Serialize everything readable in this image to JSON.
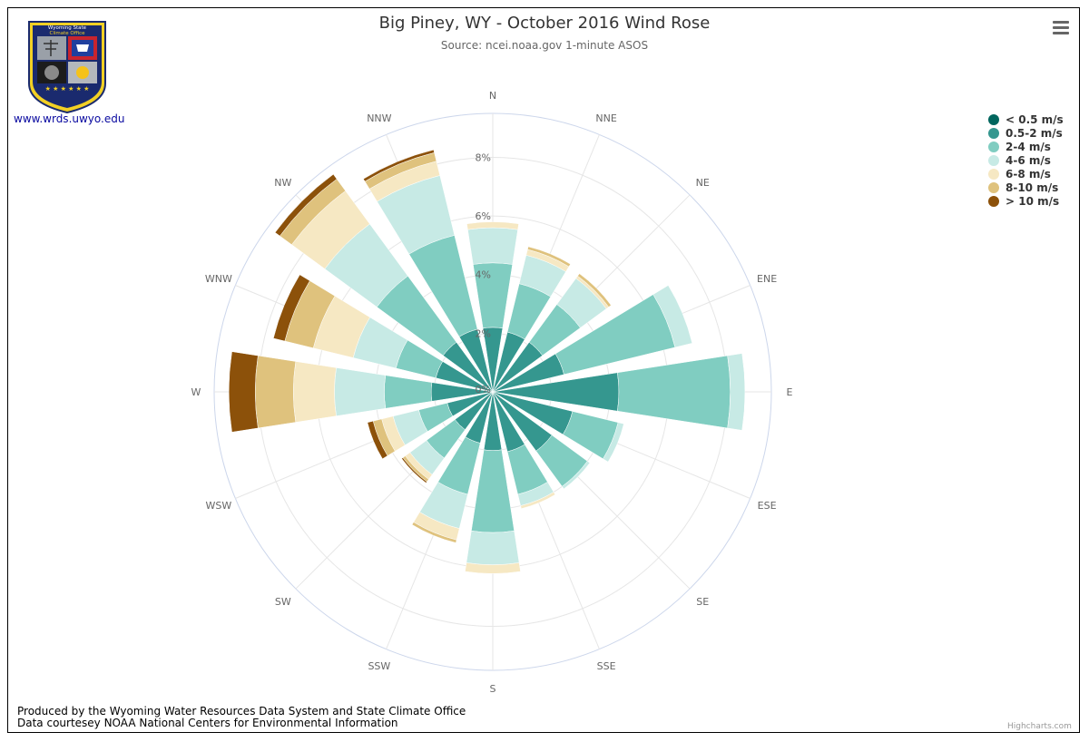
{
  "header": {
    "title": "Big Piney, WY - October 2016 Wind Rose",
    "subtitle": "Source: ncei.noaa.gov 1-minute ASOS"
  },
  "logo": {
    "badge_text_1": "Wyoming State",
    "badge_text_2": "Climate Office",
    "link_text": "www.wrds.uwyo.edu"
  },
  "footer": {
    "line1": "Produced by the Wyoming Water Resources Data System and State Climate Office",
    "line2": "Data courtesey NOAA National Centers for Environmental Information"
  },
  "credits": "Highcharts.com",
  "menu_icon": "hamburger-menu-icon",
  "chart_data": {
    "type": "bar",
    "polar": true,
    "stacked": true,
    "title": "Big Piney, WY - October 2016 Wind Rose",
    "subtitle": "Source: ncei.noaa.gov 1-minute ASOS",
    "categories": [
      "N",
      "NNE",
      "NE",
      "ENE",
      "E",
      "ESE",
      "SE",
      "SSE",
      "S",
      "SSW",
      "SW",
      "WSW",
      "W",
      "WNW",
      "NW",
      "NNW"
    ],
    "ylim": [
      0,
      9.5
    ],
    "radial_ticks": [
      0,
      2,
      4,
      6,
      8
    ],
    "radial_tick_labels": [
      "0%",
      "2%",
      "4%",
      "6%",
      "8%"
    ],
    "legend_position": "top-right",
    "series": [
      {
        "name": "< 0.5 m/s",
        "color": "#01665e",
        "values": [
          0,
          0,
          0,
          0,
          0,
          0,
          0,
          0,
          0,
          0,
          0,
          0,
          0,
          0,
          0,
          0
        ]
      },
      {
        "name": "0.5-2 m/s",
        "color": "#35978f",
        "values": [
          2.2,
          2.1,
          2.1,
          2.5,
          4.3,
          2.8,
          2.5,
          2.1,
          2.0,
          1.8,
          1.6,
          1.6,
          2.1,
          2.0,
          2.1,
          2.2
        ]
      },
      {
        "name": "2-4 m/s",
        "color": "#80cdc1",
        "values": [
          2.2,
          1.7,
          1.6,
          3.9,
          3.8,
          1.6,
          1.5,
          1.5,
          2.8,
          1.8,
          1.2,
          1.0,
          1.6,
          1.4,
          2.8,
          3.3
        ]
      },
      {
        "name": "4-6 m/s",
        "color": "#c7eae5",
        "values": [
          1.2,
          1.0,
          1.1,
          0.6,
          0.5,
          0.2,
          0.1,
          0.4,
          1.1,
          1.2,
          0.7,
          0.9,
          1.7,
          1.5,
          2.2,
          2.1
        ]
      },
      {
        "name": "6-8 m/s",
        "color": "#f6e8c3",
        "values": [
          0.2,
          0.2,
          0.1,
          0,
          0,
          0,
          0,
          0.1,
          0.3,
          0.4,
          0.2,
          0.4,
          1.4,
          1.4,
          1.4,
          0.5
        ]
      },
      {
        "name": "8-10 m/s",
        "color": "#dfc27d",
        "values": [
          0,
          0.1,
          0.1,
          0,
          0,
          0,
          0,
          0,
          0,
          0.1,
          0.1,
          0.3,
          1.3,
          1.0,
          0.5,
          0.3
        ]
      },
      {
        "name": "> 10 m/s",
        "color": "#8c510a",
        "values": [
          0,
          0,
          0,
          0,
          0,
          0,
          0,
          0,
          0,
          0,
          0.05,
          0.2,
          0.9,
          0.4,
          0.2,
          0.1
        ]
      }
    ]
  }
}
